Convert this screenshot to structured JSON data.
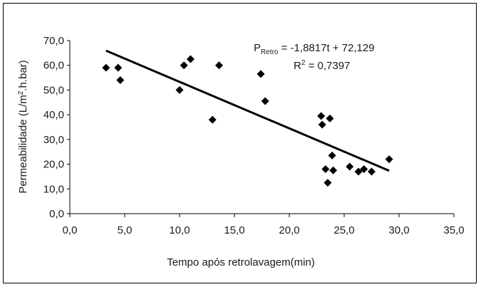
{
  "chart_data": {
    "type": "scatter",
    "xlabel": "Tempo após retrolavagem(min)",
    "ylabel": "Permeabilidade (L/m².h.bar)",
    "ylabel_parts": {
      "before": "Permeabilidade (L/m",
      "sup": "2",
      "after": ".h.bar)"
    },
    "xlim": [
      0,
      35
    ],
    "ylim": [
      0,
      70
    ],
    "x_ticks": [
      "0,0",
      "5,0",
      "10,0",
      "15,0",
      "20,0",
      "25,0",
      "30,0",
      "35,0"
    ],
    "y_ticks": [
      "0,0",
      "10,0",
      "20,0",
      "30,0",
      "40,0",
      "50,0",
      "60,0",
      "70,0"
    ],
    "points": [
      {
        "x": 3.3,
        "y": 59.0
      },
      {
        "x": 4.4,
        "y": 59.0
      },
      {
        "x": 4.6,
        "y": 54.0
      },
      {
        "x": 10.0,
        "y": 50.0
      },
      {
        "x": 10.4,
        "y": 60.0
      },
      {
        "x": 11.0,
        "y": 62.5
      },
      {
        "x": 13.0,
        "y": 38.0
      },
      {
        "x": 13.6,
        "y": 60.0
      },
      {
        "x": 17.4,
        "y": 56.5
      },
      {
        "x": 17.8,
        "y": 45.5
      },
      {
        "x": 22.9,
        "y": 39.5
      },
      {
        "x": 23.0,
        "y": 36.0
      },
      {
        "x": 23.3,
        "y": 18.0
      },
      {
        "x": 23.5,
        "y": 12.5
      },
      {
        "x": 23.7,
        "y": 38.5
      },
      {
        "x": 23.9,
        "y": 23.5
      },
      {
        "x": 24.0,
        "y": 17.5
      },
      {
        "x": 25.5,
        "y": 19.0
      },
      {
        "x": 26.3,
        "y": 17.0
      },
      {
        "x": 26.8,
        "y": 18.0
      },
      {
        "x": 27.5,
        "y": 17.0
      },
      {
        "x": 29.1,
        "y": 22.0
      }
    ],
    "trendline": {
      "x_start": 3.3,
      "x_end": 29.1,
      "slope": -1.8817,
      "intercept": 72.129
    },
    "equation": {
      "p": "P",
      "subscript": "Retro",
      "rhs": " = -1,8817t + 72,129",
      "r": "R",
      "r_sup": "2",
      "r_rhs": " = 0,7397"
    },
    "grid": false,
    "legend": "none",
    "marker": "diamond",
    "marker_color": "#000000"
  }
}
